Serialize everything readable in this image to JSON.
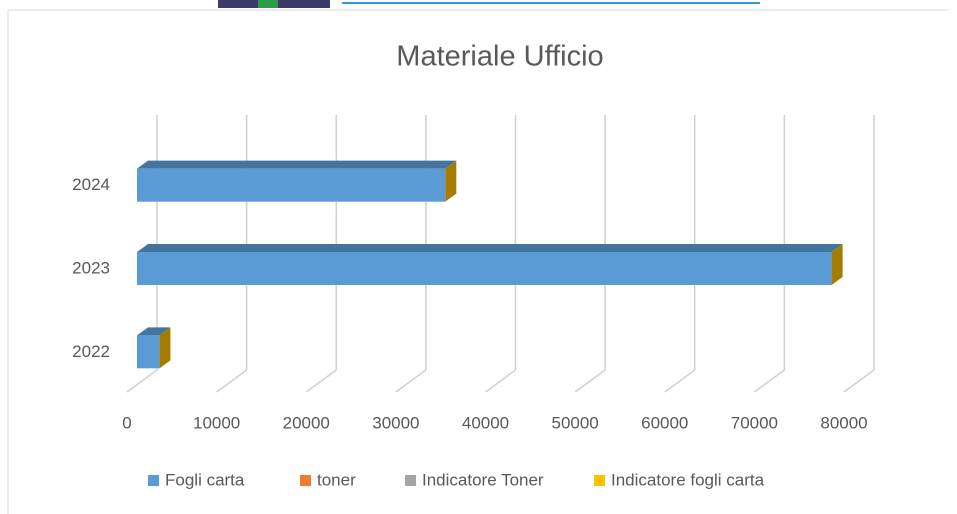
{
  "chart_data": {
    "type": "bar3d",
    "orientation": "horizontal",
    "title": "Materiale Ufficio",
    "categories": [
      "2022",
      "2023",
      "2024"
    ],
    "series": [
      {
        "name": "Fogli carta",
        "color": "#5b9bd5",
        "values": [
          2500,
          77500,
          34400
        ]
      },
      {
        "name": "toner",
        "color": "#ed7d31",
        "values": [
          0,
          0,
          0
        ]
      },
      {
        "name": "Indicatore Toner",
        "color": "#a5a5a5",
        "values": [
          0,
          0,
          0
        ]
      },
      {
        "name": "Indicatore fogli carta",
        "color": "#ffc000",
        "values": [
          0,
          0,
          0
        ]
      }
    ],
    "xlim": [
      0,
      80000
    ],
    "xticks": [
      0,
      10000,
      20000,
      30000,
      40000,
      50000,
      60000,
      70000,
      80000
    ],
    "grid": true,
    "legend": "bottom"
  }
}
